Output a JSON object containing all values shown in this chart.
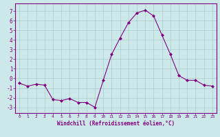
{
  "x": [
    0,
    1,
    2,
    3,
    4,
    5,
    6,
    7,
    8,
    9,
    10,
    11,
    12,
    13,
    14,
    15,
    16,
    17,
    18,
    19,
    20,
    21,
    22,
    23
  ],
  "y": [
    -0.5,
    -0.8,
    -0.6,
    -0.7,
    -2.2,
    -2.3,
    -2.1,
    -2.5,
    -2.5,
    -3.0,
    -0.2,
    2.5,
    4.2,
    5.8,
    6.8,
    7.1,
    6.5,
    4.5,
    2.5,
    0.3,
    -0.2,
    -0.2,
    -0.7,
    -0.8
  ],
  "line_color": "#800080",
  "marker": "D",
  "marker_size": 2.0,
  "bg_color": "#cce8e8",
  "grid_color": "#aacccc",
  "xlabel": "Windchill (Refroidissement éolien,°C)",
  "xlim": [
    -0.5,
    23.5
  ],
  "ylim": [
    -3.6,
    7.8
  ],
  "yticks": [
    -3,
    -2,
    -1,
    0,
    1,
    2,
    3,
    4,
    5,
    6,
    7
  ],
  "xticks": [
    0,
    1,
    2,
    3,
    4,
    5,
    6,
    7,
    8,
    9,
    10,
    11,
    12,
    13,
    14,
    15,
    16,
    17,
    18,
    19,
    20,
    21,
    22,
    23
  ],
  "tick_color": "#800080",
  "label_color": "#800080",
  "spine_color": "#800080"
}
